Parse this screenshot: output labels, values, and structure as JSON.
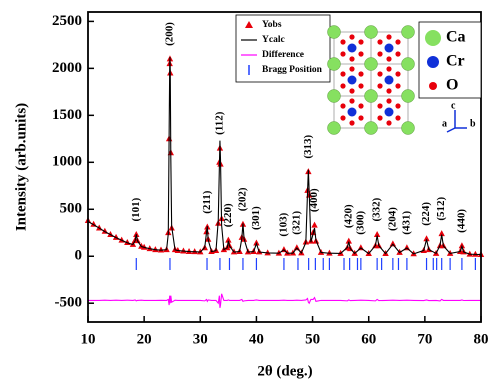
{
  "chart_data": {
    "type": "line",
    "xlabel": "2θ (deg.)",
    "ylabel": "Intensity (arb.units)",
    "xlim": [
      10,
      80
    ],
    "xticks": [
      10,
      20,
      30,
      40,
      50,
      60,
      70,
      80
    ],
    "ylim": [
      -700,
      2600
    ],
    "yticks": [
      -500,
      0,
      500,
      1000,
      1500,
      2000,
      2500
    ],
    "x": [
      10,
      11,
      12,
      13,
      14,
      15,
      16,
      17,
      18,
      18.4,
      18.6,
      18.8,
      19.5,
      20,
      21,
      22,
      23,
      24,
      24.3,
      24.45,
      24.55,
      24.6,
      24.65,
      24.75,
      24.9,
      25.5,
      26,
      27,
      28,
      29,
      30,
      30.8,
      31.1,
      31.25,
      31.4,
      32,
      32.8,
      33.2,
      33.4,
      33.5,
      33.6,
      33.8,
      34.2,
      34.8,
      35.0,
      35.2,
      36,
      37,
      37.4,
      37.6,
      37.8,
      38.5,
      39.5,
      40.0,
      40.5,
      42,
      44,
      44.9,
      45.5,
      46.5,
      47.2,
      48,
      48.8,
      49.1,
      49.25,
      49.4,
      49.7,
      50.1,
      50.35,
      50.6,
      51.5,
      53,
      55,
      56.2,
      56.45,
      56.7,
      57.5,
      58.6,
      60,
      61.2,
      61.5,
      61.8,
      63,
      64.3,
      65.5,
      66.8,
      68,
      69.8,
      70.3,
      70.7,
      72,
      72.7,
      73.0,
      73.3,
      74.5,
      76.3,
      76.6,
      76.9,
      78,
      79,
      80
    ],
    "series": [
      {
        "name": "Yobs",
        "color": "#e8000b",
        "marker": "triangle",
        "values": [
          380,
          340,
          300,
          265,
          230,
          200,
          170,
          145,
          125,
          170,
          230,
          165,
          105,
          95,
          80,
          70,
          65,
          70,
          250,
          1250,
          2050,
          2100,
          1950,
          1100,
          300,
          70,
          60,
          55,
          50,
          48,
          45,
          90,
          260,
          310,
          180,
          50,
          60,
          350,
          1000,
          1150,
          980,
          400,
          70,
          90,
          170,
          110,
          45,
          50,
          200,
          340,
          180,
          45,
          50,
          140,
          45,
          35,
          32,
          70,
          32,
          33,
          90,
          35,
          150,
          700,
          900,
          650,
          160,
          250,
          330,
          160,
          40,
          32,
          30,
          90,
          160,
          80,
          30,
          90,
          28,
          110,
          230,
          110,
          28,
          130,
          40,
          90,
          25,
          60,
          185,
          70,
          30,
          110,
          240,
          110,
          30,
          50,
          110,
          45,
          22,
          20,
          18
        ]
      },
      {
        "name": "Ycalc",
        "color": "#000000",
        "values": [
          370,
          335,
          300,
          262,
          230,
          198,
          170,
          143,
          125,
          165,
          235,
          165,
          103,
          95,
          80,
          70,
          64,
          70,
          240,
          1300,
          2000,
          2120,
          1980,
          1050,
          320,
          68,
          60,
          55,
          50,
          48,
          45,
          95,
          250,
          320,
          175,
          50,
          60,
          380,
          950,
          1230,
          1030,
          330,
          70,
          90,
          165,
          110,
          45,
          50,
          190,
          350,
          185,
          45,
          50,
          135,
          45,
          35,
          32,
          68,
          32,
          33,
          88,
          35,
          145,
          680,
          920,
          680,
          150,
          240,
          300,
          170,
          40,
          32,
          30,
          95,
          155,
          82,
          30,
          88,
          28,
          115,
          220,
          112,
          28,
          128,
          40,
          88,
          25,
          62,
          180,
          72,
          30,
          115,
          230,
          110,
          30,
          50,
          105,
          46,
          22,
          20,
          18
        ]
      },
      {
        "name": "Difference",
        "color": "#ff00ff",
        "values": [
          -470,
          -470,
          -470,
          -468,
          -470,
          -468,
          -470,
          -468,
          -470,
          -465,
          -475,
          -470,
          -468,
          -470,
          -470,
          -470,
          -469,
          -470,
          -460,
          -520,
          -420,
          -490,
          -500,
          -420,
          -490,
          -468,
          -470,
          -470,
          -470,
          -470,
          -470,
          -475,
          -460,
          -480,
          -465,
          -470,
          -470,
          -500,
          -420,
          -550,
          -520,
          -400,
          -470,
          -470,
          -465,
          -470,
          -470,
          -470,
          -460,
          -480,
          -475,
          -470,
          -470,
          -465,
          -470,
          -470,
          -470,
          -468,
          -470,
          -470,
          -468,
          -470,
          -465,
          -450,
          -490,
          -500,
          -460,
          -460,
          -440,
          -480,
          -470,
          -470,
          -470,
          -475,
          -465,
          -472,
          -470,
          -468,
          -470,
          -475,
          -460,
          -472,
          -470,
          -468,
          -470,
          -468,
          -470,
          -472,
          -465,
          -472,
          -470,
          -475,
          -460,
          -470,
          -470,
          -470,
          -465,
          -471,
          -470,
          -470,
          -470
        ]
      }
    ],
    "bragg": {
      "name": "Bragg Position",
      "color": "#1f3fff",
      "x": [
        18.6,
        24.6,
        31.2,
        33.5,
        35.2,
        37.6,
        40.0,
        44.9,
        47.4,
        49.3,
        50.5,
        51.9,
        53.0,
        55.6,
        56.6,
        58.0,
        58.6,
        61.5,
        62.3,
        64.3,
        65.3,
        66.8,
        70.3,
        71.5,
        72.1,
        73.0,
        74.5,
        76.6,
        79.0
      ]
    },
    "peaks": [
      {
        "label": "(101)",
        "x": 18.6
      },
      {
        "label": "(200)",
        "x": 24.6
      },
      {
        "label": "(211)",
        "x": 31.25
      },
      {
        "label": "(112)",
        "x": 33.5
      },
      {
        "label": "(220)",
        "x": 35.0
      },
      {
        "label": "(202)",
        "x": 37.6
      },
      {
        "label": "(301)",
        "x": 40.0
      },
      {
        "label": "(103)",
        "x": 44.9
      },
      {
        "label": "(321)",
        "x": 47.2
      },
      {
        "label": "(313)",
        "x": 49.25
      },
      {
        "label": "(400)",
        "x": 50.35
      },
      {
        "label": "(420)",
        "x": 56.45
      },
      {
        "label": "(300)",
        "x": 58.6
      },
      {
        "label": "(332)",
        "x": 61.5
      },
      {
        "label": "(204)",
        "x": 64.3
      },
      {
        "label": "(431)",
        "x": 66.8
      },
      {
        "label": "(224)",
        "x": 70.3
      },
      {
        "label": "(512)",
        "x": 73.0
      },
      {
        "label": "(440)",
        "x": 76.6
      }
    ]
  },
  "inset": {
    "elements": [
      {
        "symbol": "Ca",
        "color": "#86e060"
      },
      {
        "symbol": "Cr",
        "color": "#1030d8"
      },
      {
        "symbol": "O",
        "color": "#e8000b"
      }
    ],
    "axes": [
      "a",
      "b",
      "c"
    ]
  }
}
